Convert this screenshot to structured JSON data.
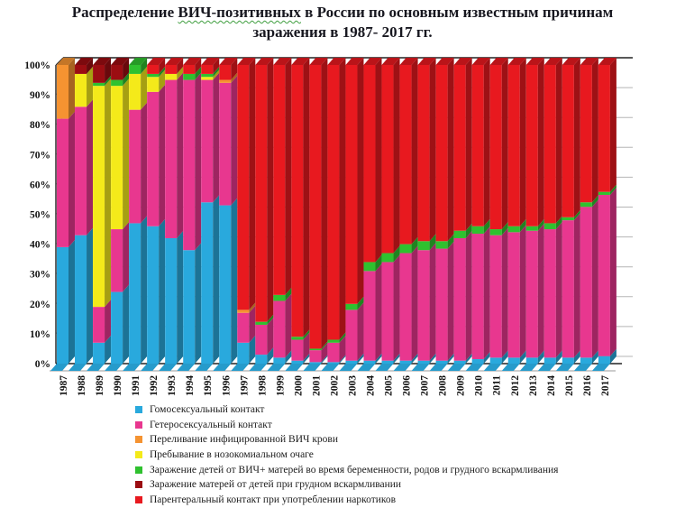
{
  "title": {
    "part1": "Распределение ",
    "word": "ВИЧ-позитивных",
    "part2": " в России по основным известным причинам",
    "line2": "заражения в 1987- 2017 гг."
  },
  "chart_data": {
    "type": "bar",
    "stacked": true,
    "percent_stacked": true,
    "grid": true,
    "legend_position": "bottom",
    "ylim": [
      0,
      100
    ],
    "y_ticks": [
      "0%",
      "10%",
      "20%",
      "30%",
      "40%",
      "50%",
      "60%",
      "70%",
      "80%",
      "90%",
      "100%"
    ],
    "categories": [
      1987,
      1988,
      1989,
      1990,
      1991,
      1992,
      1993,
      1994,
      1995,
      1996,
      1997,
      1998,
      1999,
      2000,
      2001,
      2002,
      2003,
      2004,
      2005,
      2006,
      2007,
      2008,
      2009,
      2010,
      2011,
      2012,
      2013,
      2014,
      2015,
      2016,
      2017
    ],
    "series": [
      {
        "name": "Гомосексуальный контакт",
        "color": "#29a9dd",
        "values": [
          39,
          43,
          7,
          24,
          47,
          46,
          42,
          38,
          54,
          53,
          7,
          3,
          2,
          1,
          0.5,
          0.5,
          1,
          1,
          1,
          1,
          1,
          1,
          1,
          1.5,
          2,
          2,
          2,
          2,
          2,
          2,
          2.5
        ]
      },
      {
        "name": "Гетеросексуальный контакт",
        "color": "#e8378f",
        "values": [
          43,
          43,
          12,
          21,
          38,
          45,
          53,
          57,
          41,
          41,
          10,
          10,
          19,
          7,
          4,
          6.5,
          17,
          30,
          33,
          36,
          37,
          37.5,
          41,
          42,
          41,
          42,
          42.5,
          43,
          46,
          50.5,
          54
        ]
      },
      {
        "name": "Переливание инфицированной ВИЧ крови",
        "color": "#f59331",
        "values": [
          18,
          0,
          0,
          0,
          0,
          0,
          0,
          0,
          0,
          1,
          1,
          0,
          0,
          0,
          0,
          0,
          0,
          0,
          0,
          0,
          0,
          0,
          0,
          0,
          0,
          0,
          0,
          0,
          0,
          0,
          0
        ]
      },
      {
        "name": "Пребывание в нозокомиальном очаге",
        "color": "#f4ea1a",
        "values": [
          0,
          11,
          74,
          48,
          12,
          5,
          2,
          0,
          1,
          0,
          0,
          0,
          0,
          0,
          0,
          0,
          0,
          0,
          0,
          0,
          0,
          0,
          0,
          0,
          0,
          0,
          0,
          0,
          0,
          0,
          0
        ]
      },
      {
        "name": "Заражение детей от ВИЧ+ матерей во время беременности, родов и грудного вскармливания",
        "color": "#2fc12f",
        "values": [
          0,
          0,
          1,
          2,
          3,
          1,
          0,
          2,
          1,
          0,
          0,
          1,
          2,
          1,
          0.5,
          1,
          2,
          3,
          3,
          3,
          3,
          2.5,
          2.5,
          2.5,
          2,
          2,
          1.5,
          2,
          1,
          1.5,
          1
        ]
      },
      {
        "name": "Заражение матерей от детей при грудном вскармливании",
        "color": "#9b0d12",
        "values": [
          0,
          3,
          6,
          5,
          0,
          0,
          0,
          0,
          0,
          0,
          0,
          0,
          0,
          0,
          0,
          0,
          0,
          0,
          0,
          0,
          0,
          0,
          0,
          0,
          0,
          0,
          0,
          0,
          0,
          0,
          0
        ]
      },
      {
        "name": "Парентеральный контакт при употреблении наркотиков",
        "color": "#e8191f",
        "values": [
          0,
          0,
          0,
          0,
          0,
          3,
          3,
          3,
          3,
          5,
          82,
          86,
          77,
          91,
          95,
          92,
          80,
          66,
          63,
          60,
          59,
          59,
          55.5,
          54,
          55,
          54,
          54,
          53,
          51,
          46,
          42.5
        ]
      }
    ]
  }
}
